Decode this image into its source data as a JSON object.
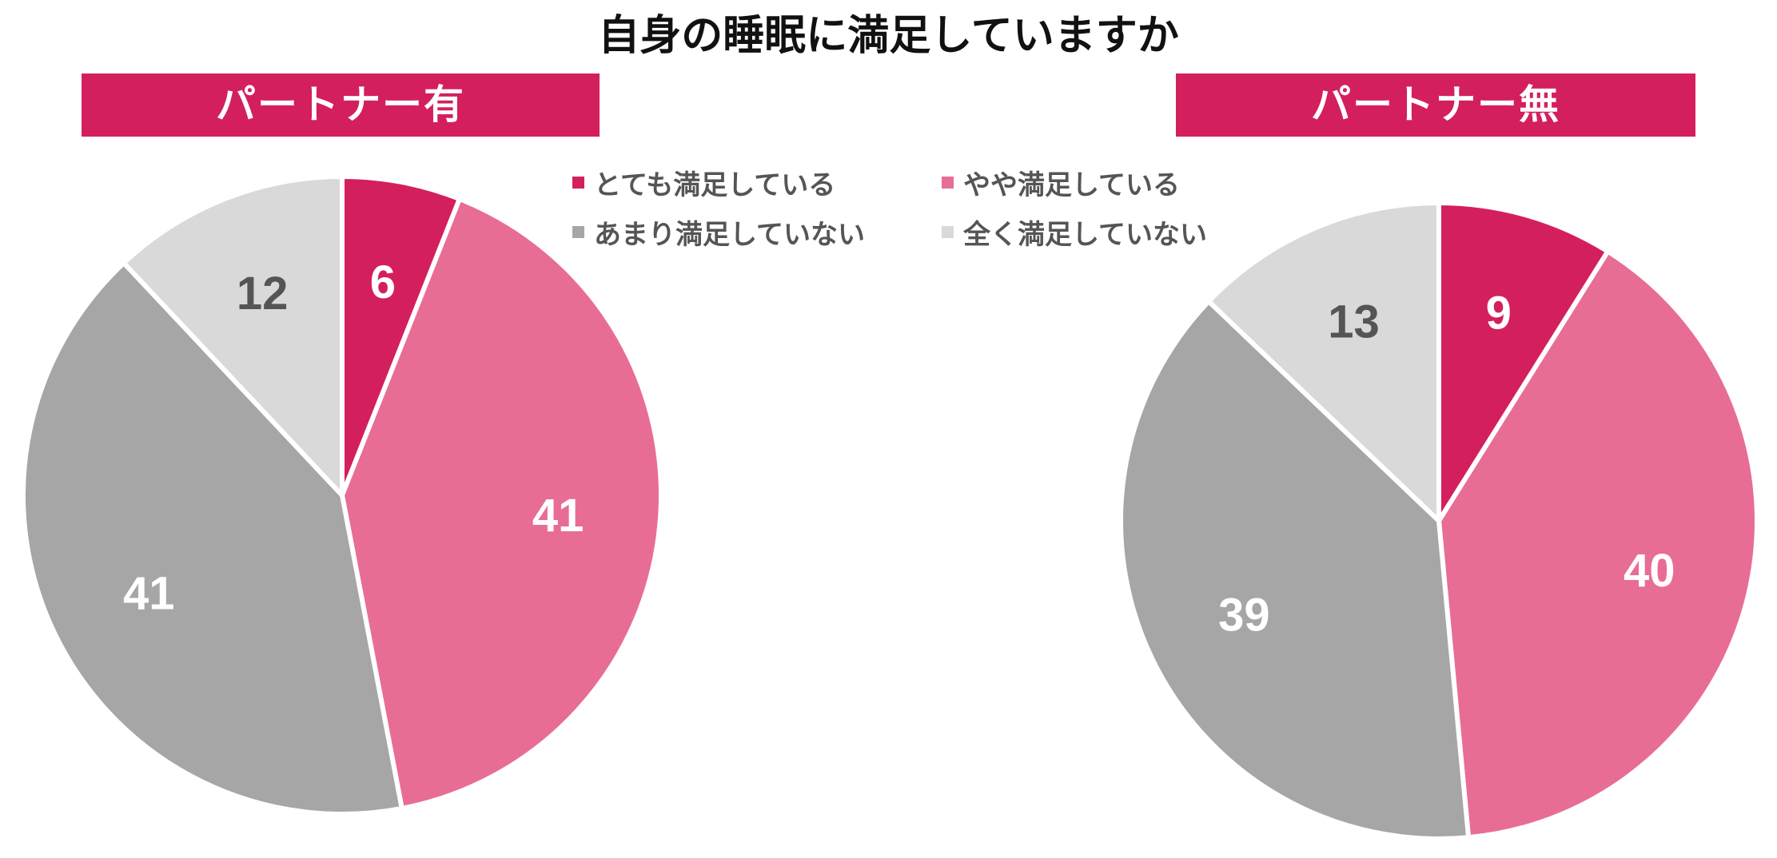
{
  "chart_title": "自身の睡眠に満足していますか",
  "legend": [
    {
      "label": "とても満足している",
      "color": "#d41f5e"
    },
    {
      "label": "やや満足している",
      "color": "#e86d94"
    },
    {
      "label": "あまり満足していない",
      "color": "#a6a6a6"
    },
    {
      "label": "全く満足していない",
      "color": "#d9d9d9"
    }
  ],
  "chart_data": [
    {
      "type": "pie",
      "title": "パートナー有",
      "categories": [
        "とても満足している",
        "やや満足している",
        "あまり満足していない",
        "全く満足していない"
      ],
      "values": [
        6,
        41,
        41,
        12
      ],
      "colors": [
        "#d41f5e",
        "#e86d94",
        "#a6a6a6",
        "#d9d9d9"
      ],
      "label_colors": [
        "#ffffff",
        "#ffffff",
        "#ffffff",
        "#555555"
      ],
      "start_angle": "12 o'clock",
      "direction": "clockwise",
      "legend_position": "top-right"
    },
    {
      "type": "pie",
      "title": "パートナー無",
      "categories": [
        "とても満足している",
        "やや満足している",
        "あまり満足していない",
        "全く満足していない"
      ],
      "values": [
        9,
        40,
        39,
        13
      ],
      "colors": [
        "#d41f5e",
        "#e86d94",
        "#a6a6a6",
        "#d9d9d9"
      ],
      "label_colors": [
        "#ffffff",
        "#ffffff",
        "#ffffff",
        "#555555"
      ],
      "start_angle": "12 o'clock",
      "direction": "clockwise",
      "legend_position": "top-left"
    }
  ]
}
